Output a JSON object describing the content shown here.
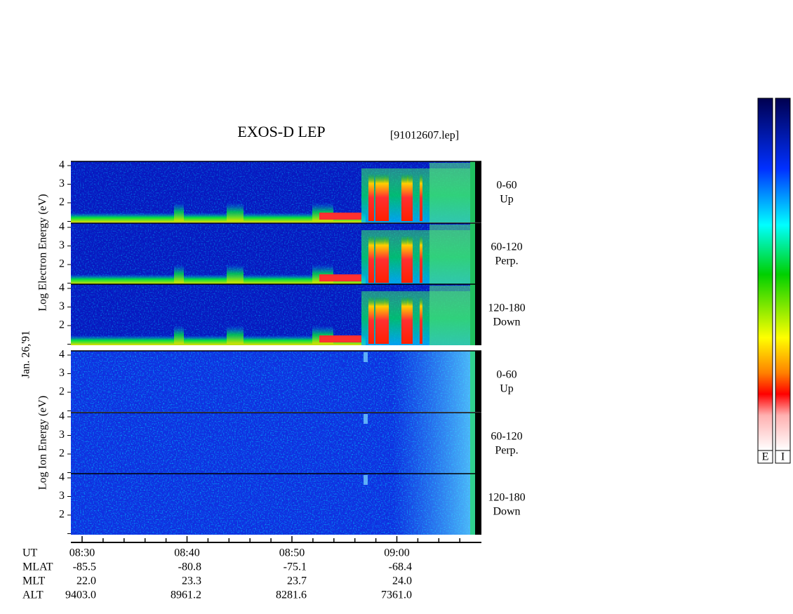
{
  "header": {
    "title": "EXOS-D LEP",
    "file": "[91012607.lep]"
  },
  "date": "Jan. 26,'91",
  "electron": {
    "axis_label": "Log Electron Energy (eV)",
    "panels": [
      {
        "range": "0-60",
        "direction": "Up"
      },
      {
        "range": "60-120",
        "direction": "Perp."
      },
      {
        "range": "120-180",
        "direction": "Down"
      }
    ]
  },
  "ion": {
    "axis_label": "Log Ion Energy (eV)",
    "panels": [
      {
        "range": "0-60",
        "direction": "Up"
      },
      {
        "range": "60-120",
        "direction": "Perp."
      },
      {
        "range": "120-180",
        "direction": "Down"
      }
    ]
  },
  "energy_ticks": [
    4,
    3,
    2
  ],
  "orbit_table": {
    "rows": [
      {
        "name": "UT",
        "values": [
          "08:30",
          "08:40",
          "08:50",
          "09:00"
        ]
      },
      {
        "name": "MLAT",
        "values": [
          "-85.5",
          "-80.8",
          "-75.1",
          "-68.4"
        ]
      },
      {
        "name": "MLT",
        "values": [
          "22.0",
          "23.3",
          "23.7",
          "24.0"
        ]
      },
      {
        "name": "ALT",
        "values": [
          "9403.0",
          "8961.2",
          "8281.6",
          "7361.0"
        ]
      }
    ]
  },
  "color_bars": [
    "E",
    "I"
  ]
}
